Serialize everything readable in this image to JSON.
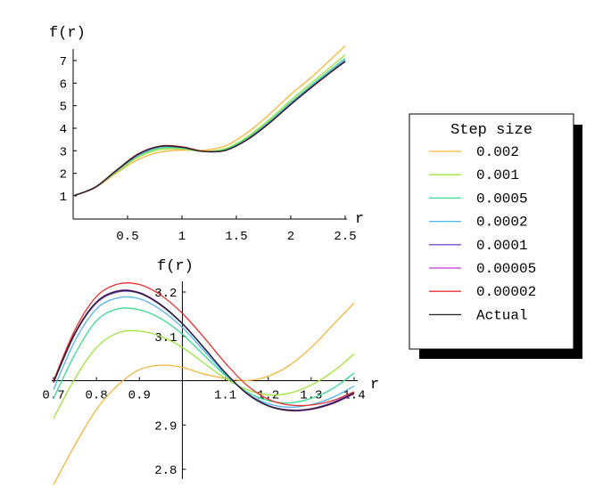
{
  "chart_data": [
    {
      "type": "line",
      "ylabel": "f(r)",
      "xlabel": "r",
      "xlim": [
        0,
        2.5
      ],
      "ylim": [
        0.3,
        7.6
      ],
      "xticks": [
        0.5,
        1,
        1.5,
        2,
        2.5
      ],
      "xtick_labels": [
        "0.5",
        "1",
        "1.5",
        "2",
        "2.5"
      ],
      "yticks": [
        1,
        2,
        3,
        4,
        5,
        6,
        7
      ],
      "ytick_labels": [
        "1",
        "2",
        "3",
        "4",
        "5",
        "6",
        "7"
      ],
      "grid": false,
      "series": [
        {
          "name": "0.002",
          "color": "#f5b43c",
          "x": [
            0,
            0.2,
            0.4,
            0.6,
            0.8,
            1.0,
            1.2,
            1.4,
            1.6,
            1.8,
            2.0,
            2.2,
            2.4,
            2.5
          ],
          "values": [
            1.0,
            1.35,
            2.02,
            2.62,
            2.95,
            3.03,
            3.02,
            3.22,
            3.8,
            4.6,
            5.5,
            6.3,
            7.2,
            7.65
          ]
        },
        {
          "name": "0.001",
          "color": "#9ee43c",
          "x": [
            0,
            0.2,
            0.4,
            0.6,
            0.8,
            1.0,
            1.2,
            1.4,
            1.6,
            1.8,
            2.0,
            2.2,
            2.4,
            2.5
          ],
          "values": [
            1.0,
            1.36,
            2.07,
            2.72,
            3.06,
            3.08,
            2.97,
            3.1,
            3.62,
            4.38,
            5.24,
            6.05,
            6.85,
            7.25
          ]
        },
        {
          "name": "0.0005",
          "color": "#3cd890",
          "x": [
            0,
            0.2,
            0.4,
            0.6,
            0.8,
            1.0,
            1.2,
            1.4,
            1.6,
            1.8,
            2.0,
            2.2,
            2.4,
            2.5
          ],
          "values": [
            1.0,
            1.37,
            2.1,
            2.78,
            3.12,
            3.12,
            2.97,
            3.06,
            3.56,
            4.3,
            5.15,
            5.95,
            6.72,
            7.1
          ]
        },
        {
          "name": "0.0002",
          "color": "#50b4f0",
          "x": [
            0,
            0.2,
            0.4,
            0.6,
            0.8,
            1.0,
            1.2,
            1.4,
            1.6,
            1.8,
            2.0,
            2.2,
            2.4,
            2.5
          ],
          "values": [
            1.0,
            1.37,
            2.12,
            2.82,
            3.17,
            3.14,
            2.97,
            3.03,
            3.52,
            4.25,
            5.1,
            5.9,
            6.65,
            7.02
          ]
        },
        {
          "name": "0.0001",
          "color": "#7850e0",
          "x": [
            0,
            0.2,
            0.4,
            0.6,
            0.8,
            1.0,
            1.2,
            1.4,
            1.6,
            1.8,
            2.0,
            2.2,
            2.4,
            2.5
          ],
          "values": [
            1.0,
            1.37,
            2.13,
            2.84,
            3.19,
            3.15,
            2.97,
            3.02,
            3.5,
            4.23,
            5.07,
            5.87,
            6.62,
            6.98
          ]
        },
        {
          "name": "0.00005",
          "color": "#c03cd0",
          "x": [
            0,
            0.2,
            0.4,
            0.6,
            0.8,
            1.0,
            1.2,
            1.4,
            1.6,
            1.8,
            2.0,
            2.2,
            2.4,
            2.5
          ],
          "values": [
            1.0,
            1.37,
            2.13,
            2.84,
            3.19,
            3.15,
            2.97,
            3.02,
            3.5,
            4.22,
            5.06,
            5.86,
            6.61,
            6.97
          ]
        },
        {
          "name": "0.00002",
          "color": "#e83030",
          "x": [
            0,
            0.2,
            0.4,
            0.6,
            0.8,
            1.0,
            1.2,
            1.4,
            1.6,
            1.8,
            2.0,
            2.2,
            2.4,
            2.5
          ],
          "values": [
            1.0,
            1.38,
            2.15,
            2.87,
            3.21,
            3.18,
            2.98,
            3.02,
            3.49,
            4.21,
            5.05,
            5.84,
            6.6,
            6.95
          ]
        },
        {
          "name": "Actual",
          "color": "#202020",
          "x": [
            0,
            0.2,
            0.4,
            0.6,
            0.8,
            1.0,
            1.2,
            1.4,
            1.6,
            1.8,
            2.0,
            2.2,
            2.4,
            2.5
          ],
          "values": [
            1.0,
            1.38,
            2.14,
            2.86,
            3.2,
            3.16,
            2.97,
            3.02,
            3.49,
            4.21,
            5.05,
            5.85,
            6.6,
            6.95
          ]
        }
      ]
    },
    {
      "type": "line",
      "ylabel": "f(r)",
      "xlabel": "r",
      "xlim": [
        0.7,
        1.4
      ],
      "ylim": [
        2.76,
        3.23
      ],
      "x_axis_crosses_y": 3.0,
      "y_axis_crosses_x": 1.0,
      "xticks": [
        0.7,
        0.8,
        0.9,
        1.1,
        1.2,
        1.3,
        1.4
      ],
      "xtick_labels": [
        "0.7",
        "0.8",
        "0.9",
        "1.1",
        "1.2",
        "1.3",
        "1.4"
      ],
      "yticks": [
        2.8,
        2.9,
        3.1,
        3.2
      ],
      "ytick_labels": [
        "2.8",
        "2.9",
        "3.1",
        "3.2"
      ],
      "grid": false,
      "series": [
        {
          "name": "0.002",
          "color": "#f5b43c",
          "x": [
            0.7,
            0.75,
            0.8,
            0.85,
            0.9,
            0.95,
            1.0,
            1.05,
            1.1,
            1.15,
            1.2,
            1.25,
            1.3,
            1.35,
            1.4
          ],
          "values": [
            2.765,
            2.855,
            2.935,
            2.99,
            3.025,
            3.035,
            3.03,
            3.015,
            3.005,
            3.0,
            3.01,
            3.035,
            3.075,
            3.125,
            3.175
          ]
        },
        {
          "name": "0.001",
          "color": "#9ee43c",
          "x": [
            0.7,
            0.75,
            0.8,
            0.85,
            0.9,
            0.95,
            1.0,
            1.05,
            1.1,
            1.15,
            1.2,
            1.25,
            1.3,
            1.35,
            1.4
          ],
          "values": [
            2.915,
            3.005,
            3.075,
            3.108,
            3.112,
            3.1,
            3.075,
            3.04,
            3.005,
            2.98,
            2.968,
            2.972,
            2.99,
            3.02,
            3.06
          ]
        },
        {
          "name": "0.0005",
          "color": "#3cd890",
          "x": [
            0.7,
            0.75,
            0.8,
            0.85,
            0.9,
            0.95,
            1.0,
            1.05,
            1.1,
            1.15,
            1.2,
            1.25,
            1.3,
            1.35,
            1.4
          ],
          "values": [
            2.96,
            3.06,
            3.135,
            3.162,
            3.16,
            3.14,
            3.105,
            3.058,
            3.012,
            2.975,
            2.955,
            2.95,
            2.96,
            2.982,
            3.017
          ]
        },
        {
          "name": "0.0002",
          "color": "#50b4f0",
          "x": [
            0.7,
            0.75,
            0.8,
            0.85,
            0.9,
            0.95,
            1.0,
            1.05,
            1.1,
            1.15,
            1.2,
            1.25,
            1.3,
            1.35,
            1.4
          ],
          "values": [
            2.98,
            3.09,
            3.162,
            3.187,
            3.185,
            3.16,
            3.12,
            3.068,
            3.015,
            2.972,
            2.948,
            2.94,
            2.946,
            2.962,
            2.988
          ]
        },
        {
          "name": "0.0001",
          "color": "#7850e0",
          "x": [
            0.7,
            0.75,
            0.8,
            0.85,
            0.9,
            0.95,
            1.0,
            1.05,
            1.1,
            1.15,
            1.2,
            1.25,
            1.3,
            1.35,
            1.4
          ],
          "values": [
            2.995,
            3.105,
            3.175,
            3.2,
            3.197,
            3.17,
            3.128,
            3.074,
            3.018,
            2.972,
            2.944,
            2.934,
            2.937,
            2.951,
            2.974
          ]
        },
        {
          "name": "0.00005",
          "color": "#c03cd0",
          "x": [
            0.7,
            0.75,
            0.8,
            0.85,
            0.9,
            0.95,
            1.0,
            1.05,
            1.1,
            1.15,
            1.2,
            1.25,
            1.3,
            1.35,
            1.4
          ],
          "values": [
            2.998,
            3.108,
            3.178,
            3.203,
            3.199,
            3.172,
            3.129,
            3.075,
            3.018,
            2.971,
            2.943,
            2.932,
            2.935,
            2.948,
            2.97
          ]
        },
        {
          "name": "0.00002",
          "color": "#e83030",
          "x": [
            0.7,
            0.75,
            0.8,
            0.85,
            0.9,
            0.95,
            1.0,
            1.05,
            1.1,
            1.15,
            1.2,
            1.25,
            1.3,
            1.35,
            1.4
          ],
          "values": [
            3.0,
            3.115,
            3.19,
            3.218,
            3.217,
            3.193,
            3.152,
            3.098,
            3.04,
            2.99,
            2.958,
            2.945,
            2.945,
            2.955,
            2.975
          ]
        },
        {
          "name": "Actual",
          "color": "#202020",
          "x": [
            0.7,
            0.75,
            0.8,
            0.85,
            0.9,
            0.95,
            1.0,
            1.05,
            1.1,
            1.15,
            1.2,
            1.25,
            1.3,
            1.35,
            1.4
          ],
          "values": [
            2.997,
            3.107,
            3.177,
            3.202,
            3.198,
            3.171,
            3.129,
            3.075,
            3.018,
            2.971,
            2.943,
            2.933,
            2.936,
            2.949,
            2.972
          ]
        }
      ]
    }
  ],
  "legend": {
    "title": "Step size",
    "placement": "right",
    "entries": [
      {
        "label": "0.002",
        "color": "#f5b43c"
      },
      {
        "label": "0.001",
        "color": "#9ee43c"
      },
      {
        "label": "0.0005",
        "color": "#3cd890"
      },
      {
        "label": "0.0002",
        "color": "#50b4f0"
      },
      {
        "label": "0.0001",
        "color": "#7850e0"
      },
      {
        "label": "0.00005",
        "color": "#c03cd0"
      },
      {
        "label": "0.00002",
        "color": "#e83030"
      },
      {
        "label": "Actual",
        "color": "#202020"
      }
    ]
  }
}
